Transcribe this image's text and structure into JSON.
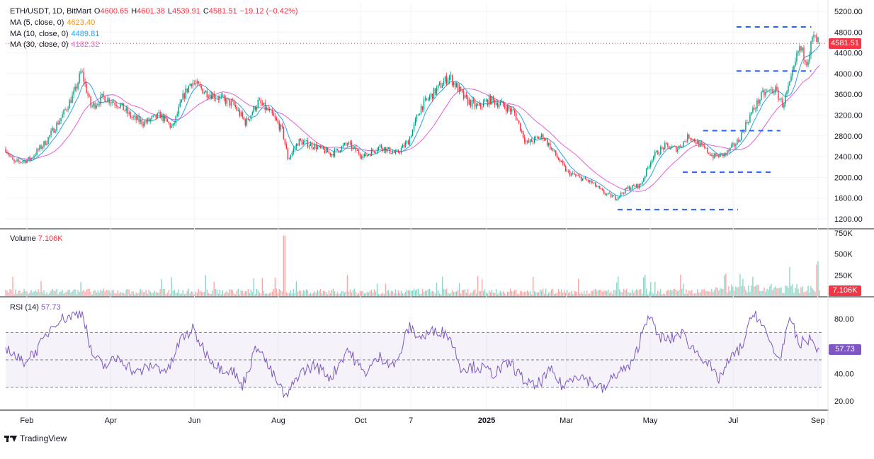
{
  "legend": {
    "symbol": "ETH/USDT, 1D, BitMart",
    "o_label": "O",
    "o_value": "4600.65",
    "h_label": "H",
    "h_value": "4601.38",
    "l_label": "L",
    "l_value": "4539.91",
    "c_label": "C",
    "c_value": "4581.51",
    "change": "−19.12 (−0.42%)",
    "ma5_label": "MA (5, close, 0)",
    "ma5_value": "4623.40",
    "ma10_label": "MA (10, close, 0)",
    "ma10_value": "4489.81",
    "ma30_label": "MA (30, close, 0)",
    "ma30_value": "4182.32"
  },
  "volume_label": "Volume",
  "volume_value": "7.106K",
  "rsi_label": "RSI (14)",
  "rsi_value": "57.73",
  "price_tag": "4581.51",
  "volume_tag": "7.106K",
  "rsi_tag": "57.73",
  "brand": "TradingView",
  "colors": {
    "up": "#089981",
    "down": "#f23645",
    "ma5": "#f7931a",
    "ma10": "#2ba0e6",
    "ma30": "#e060d8",
    "rsi": "#7e57c2",
    "levels": "#2962ff"
  },
  "chart_data": {
    "type": "line",
    "price_axis": {
      "min": 1200,
      "max": 5200,
      "ticks": [
        "5200.00",
        "4800.00",
        "4400.00",
        "4000.00",
        "3600.00",
        "3200.00",
        "2800.00",
        "2400.00",
        "2000.00",
        "1600.00",
        "1200.00"
      ]
    },
    "volume_axis": {
      "ticks": [
        "750K",
        "500K",
        "250K"
      ]
    },
    "rsi_axis": {
      "min": 20,
      "max": 80,
      "ticks": [
        "80.00",
        "40.00",
        "20.00"
      ],
      "bands": [
        70,
        50,
        30
      ]
    },
    "x_ticks": [
      {
        "label": "Feb",
        "pos": 0.026
      },
      {
        "label": "Apr",
        "pos": 0.129
      },
      {
        "label": "Jun",
        "pos": 0.232
      },
      {
        "label": "Aug",
        "pos": 0.335
      },
      {
        "label": "Oct",
        "pos": 0.436
      },
      {
        "label": "7",
        "pos": 0.498
      },
      {
        "label": "2025",
        "pos": 0.591,
        "bold": true
      },
      {
        "label": "Mar",
        "pos": 0.689
      },
      {
        "label": "May",
        "pos": 0.792
      },
      {
        "label": "Jul",
        "pos": 0.894
      },
      {
        "label": "Sep",
        "pos": 0.998
      }
    ],
    "close_series": {
      "name": "ETH/USDT",
      "keypoints": [
        [
          0,
          2550
        ],
        [
          0.01,
          2280
        ],
        [
          0.03,
          2350
        ],
        [
          0.05,
          2700
        ],
        [
          0.07,
          3200
        ],
        [
          0.085,
          3650
        ],
        [
          0.093,
          4050
        ],
        [
          0.105,
          3350
        ],
        [
          0.12,
          3550
        ],
        [
          0.14,
          3400
        ],
        [
          0.155,
          3150
        ],
        [
          0.17,
          3050
        ],
        [
          0.19,
          3200
        ],
        [
          0.205,
          2950
        ],
        [
          0.218,
          3550
        ],
        [
          0.228,
          3850
        ],
        [
          0.245,
          3650
        ],
        [
          0.26,
          3550
        ],
        [
          0.28,
          3400
        ],
        [
          0.295,
          3050
        ],
        [
          0.31,
          3450
        ],
        [
          0.325,
          3250
        ],
        [
          0.34,
          2900
        ],
        [
          0.347,
          2350
        ],
        [
          0.36,
          2700
        ],
        [
          0.38,
          2600
        ],
        [
          0.4,
          2450
        ],
        [
          0.42,
          2650
        ],
        [
          0.44,
          2400
        ],
        [
          0.46,
          2600
        ],
        [
          0.48,
          2450
        ],
        [
          0.495,
          2700
        ],
        [
          0.51,
          3350
        ],
        [
          0.53,
          3700
        ],
        [
          0.545,
          3950
        ],
        [
          0.565,
          3500
        ],
        [
          0.58,
          3350
        ],
        [
          0.595,
          3500
        ],
        [
          0.61,
          3400
        ],
        [
          0.625,
          3250
        ],
        [
          0.64,
          2650
        ],
        [
          0.66,
          2800
        ],
        [
          0.675,
          2450
        ],
        [
          0.69,
          2100
        ],
        [
          0.705,
          2000
        ],
        [
          0.72,
          1900
        ],
        [
          0.735,
          1700
        ],
        [
          0.75,
          1600
        ],
        [
          0.765,
          1800
        ],
        [
          0.78,
          1850
        ],
        [
          0.795,
          2400
        ],
        [
          0.81,
          2600
        ],
        [
          0.825,
          2550
        ],
        [
          0.84,
          2800
        ],
        [
          0.855,
          2600
        ],
        [
          0.87,
          2400
        ],
        [
          0.885,
          2450
        ],
        [
          0.9,
          2700
        ],
        [
          0.915,
          3200
        ],
        [
          0.93,
          3600
        ],
        [
          0.945,
          3700
        ],
        [
          0.955,
          3400
        ],
        [
          0.965,
          3850
        ],
        [
          0.975,
          4500
        ],
        [
          0.985,
          4250
        ],
        [
          0.992,
          4700
        ],
        [
          1.0,
          4581
        ]
      ]
    },
    "levels": [
      {
        "price": 4900,
        "x0": 0.898,
        "x1": 0.99
      },
      {
        "price": 4050,
        "x0": 0.898,
        "x1": 0.99
      },
      {
        "price": 2900,
        "x0": 0.857,
        "x1": 0.952
      },
      {
        "price": 2100,
        "x0": 0.832,
        "x1": 0.945
      },
      {
        "price": 1380,
        "x0": 0.752,
        "x1": 0.9
      }
    ],
    "rsi_series": {
      "name": "RSI (14)",
      "keypoints": [
        [
          0,
          60
        ],
        [
          0.02,
          48
        ],
        [
          0.04,
          58
        ],
        [
          0.06,
          78
        ],
        [
          0.08,
          82
        ],
        [
          0.095,
          85
        ],
        [
          0.105,
          55
        ],
        [
          0.12,
          45
        ],
        [
          0.14,
          52
        ],
        [
          0.16,
          40
        ],
        [
          0.18,
          46
        ],
        [
          0.2,
          42
        ],
        [
          0.215,
          65
        ],
        [
          0.23,
          72
        ],
        [
          0.245,
          56
        ],
        [
          0.26,
          45
        ],
        [
          0.28,
          42
        ],
        [
          0.29,
          30
        ],
        [
          0.31,
          62
        ],
        [
          0.32,
          48
        ],
        [
          0.335,
          32
        ],
        [
          0.345,
          22
        ],
        [
          0.36,
          40
        ],
        [
          0.38,
          46
        ],
        [
          0.4,
          37
        ],
        [
          0.42,
          58
        ],
        [
          0.44,
          40
        ],
        [
          0.46,
          52
        ],
        [
          0.48,
          46
        ],
        [
          0.495,
          74
        ],
        [
          0.51,
          66
        ],
        [
          0.53,
          72
        ],
        [
          0.545,
          68
        ],
        [
          0.56,
          44
        ],
        [
          0.58,
          45
        ],
        [
          0.6,
          40
        ],
        [
          0.62,
          48
        ],
        [
          0.635,
          36
        ],
        [
          0.65,
          30
        ],
        [
          0.67,
          42
        ],
        [
          0.685,
          30
        ],
        [
          0.7,
          40
        ],
        [
          0.72,
          34
        ],
        [
          0.735,
          28
        ],
        [
          0.75,
          40
        ],
        [
          0.77,
          46
        ],
        [
          0.79,
          85
        ],
        [
          0.8,
          68
        ],
        [
          0.815,
          64
        ],
        [
          0.83,
          70
        ],
        [
          0.845,
          58
        ],
        [
          0.86,
          50
        ],
        [
          0.875,
          35
        ],
        [
          0.89,
          50
        ],
        [
          0.905,
          60
        ],
        [
          0.92,
          86
        ],
        [
          0.935,
          68
        ],
        [
          0.95,
          50
        ],
        [
          0.965,
          80
        ],
        [
          0.975,
          60
        ],
        [
          0.985,
          66
        ],
        [
          1.0,
          57.73
        ]
      ]
    }
  }
}
